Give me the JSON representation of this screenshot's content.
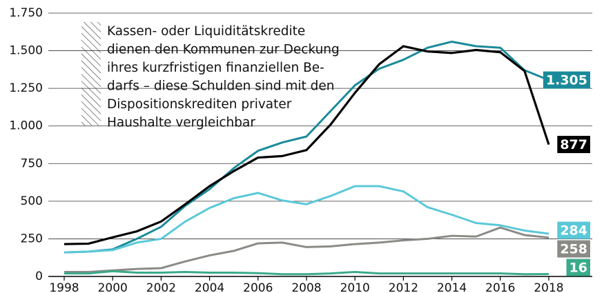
{
  "chart_data": {
    "type": "line",
    "annotation": [
      "Kassen- oder Liquiditätskredite",
      "dienen den Kommunen zur Deckung",
      "ihres kurzfristigen finanziellen Be-",
      "darfs – diese Schulden sind mit den",
      "Dispositionskrediten privater",
      "Haushalte vergleichbar"
    ],
    "x": [
      1998,
      1999,
      2000,
      2001,
      2002,
      2003,
      2004,
      2005,
      2006,
      2007,
      2008,
      2009,
      2010,
      2011,
      2012,
      2013,
      2014,
      2015,
      2016,
      2017,
      2018
    ],
    "series": [
      {
        "color": "#1a8a9a",
        "values": [
          160,
          165,
          180,
          250,
          330,
          470,
          580,
          720,
          835,
          890,
          930,
          1100,
          1270,
          1380,
          1440,
          1520,
          1560,
          1530,
          1520,
          1370,
          1305
        ],
        "value_labels": [
          null,
          null,
          null,
          null,
          null,
          null,
          null,
          null,
          null,
          null,
          null,
          null,
          null,
          null,
          null,
          null,
          null,
          null,
          null,
          null,
          "1.305"
        ]
      },
      {
        "color": "#000000",
        "values": [
          215,
          218,
          260,
          300,
          365,
          480,
          600,
          700,
          790,
          800,
          840,
          1010,
          1220,
          1410,
          1530,
          1495,
          1485,
          1505,
          1490,
          1365,
          877
        ],
        "value_labels": [
          null,
          null,
          null,
          null,
          null,
          null,
          null,
          null,
          null,
          null,
          null,
          null,
          null,
          null,
          null,
          null,
          null,
          null,
          null,
          null,
          "877"
        ]
      },
      {
        "color": "#5bc8d8",
        "values": [
          160,
          165,
          175,
          225,
          250,
          365,
          455,
          520,
          555,
          505,
          480,
          535,
          600,
          600,
          565,
          460,
          410,
          355,
          340,
          305,
          284
        ],
        "value_labels": [
          null,
          null,
          null,
          null,
          null,
          null,
          null,
          null,
          null,
          null,
          null,
          null,
          null,
          null,
          null,
          null,
          null,
          null,
          null,
          null,
          "284"
        ]
      },
      {
        "color": "#8a8a86",
        "values": [
          30,
          30,
          40,
          50,
          55,
          100,
          140,
          170,
          220,
          225,
          195,
          200,
          215,
          225,
          240,
          250,
          270,
          265,
          325,
          275,
          258
        ],
        "value_labels": [
          null,
          null,
          null,
          null,
          null,
          null,
          null,
          null,
          null,
          null,
          null,
          null,
          null,
          null,
          null,
          null,
          null,
          null,
          null,
          null,
          "258"
        ]
      },
      {
        "color": "#3aaa8a",
        "values": [
          20,
          20,
          35,
          25,
          25,
          30,
          25,
          25,
          22,
          15,
          15,
          20,
          30,
          20,
          20,
          20,
          20,
          20,
          20,
          15,
          16
        ],
        "value_labels": [
          null,
          null,
          null,
          null,
          null,
          null,
          null,
          null,
          null,
          null,
          null,
          null,
          null,
          null,
          null,
          null,
          null,
          null,
          null,
          null,
          "16"
        ]
      }
    ],
    "xlim": [
      1998,
      2018
    ],
    "xticks": [
      1998,
      2000,
      2002,
      2004,
      2006,
      2008,
      2010,
      2012,
      2014,
      2016,
      2018
    ],
    "ylim": [
      0,
      1750
    ],
    "yticks": [
      0,
      250,
      500,
      750,
      {
        "value": 1000,
        "label": "1.000"
      },
      {
        "value": 1250,
        "label": "1.250"
      },
      {
        "value": 1500,
        "label": "1.500"
      },
      {
        "value": 1750,
        "label": "1.750"
      }
    ],
    "grid": true
  }
}
